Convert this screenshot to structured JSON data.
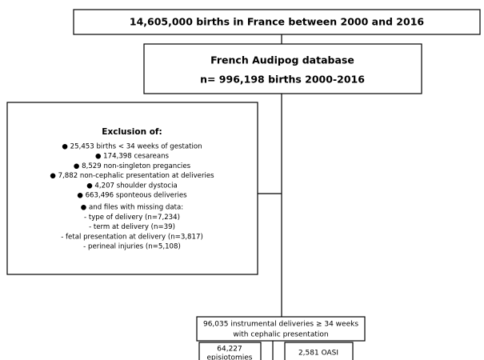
{
  "nodes": [
    {
      "lines": [
        "14,605,000 births in France between 2000 and 2016"
      ]
    },
    {
      "lines": [
        "French Audipog database",
        "n= 996,198 births 2000-2016"
      ]
    },
    {
      "title": "Exclusion of:",
      "criteria": [
        "● 25,453 births < 34 weeks of gestation",
        "● 174,398 cesareans",
        "● 8,529 non-singleton pregancies",
        "● 7,882 non-cephalic presentation at deliveries",
        "● 4,207 shoulder dystocia",
        "● 663,496 sponteous deliveries"
      ],
      "missing_data_title": "● and files with missing data:",
      "missing_data": [
        "- type of delivery (n=7,234)",
        "- term at delivery (n=39)",
        "- fetal presentation at delivery (n=3,817)",
        "- perineal injuries (n=5,108)"
      ]
    },
    {
      "lines": [
        "96,035 instrumental deliveries ≥ 34 weeks",
        "with cephalic presentation"
      ]
    },
    {
      "lines": [
        "64,227",
        "episiotomies"
      ]
    },
    {
      "lines": [
        "2,581 OASI"
      ]
    }
  ]
}
